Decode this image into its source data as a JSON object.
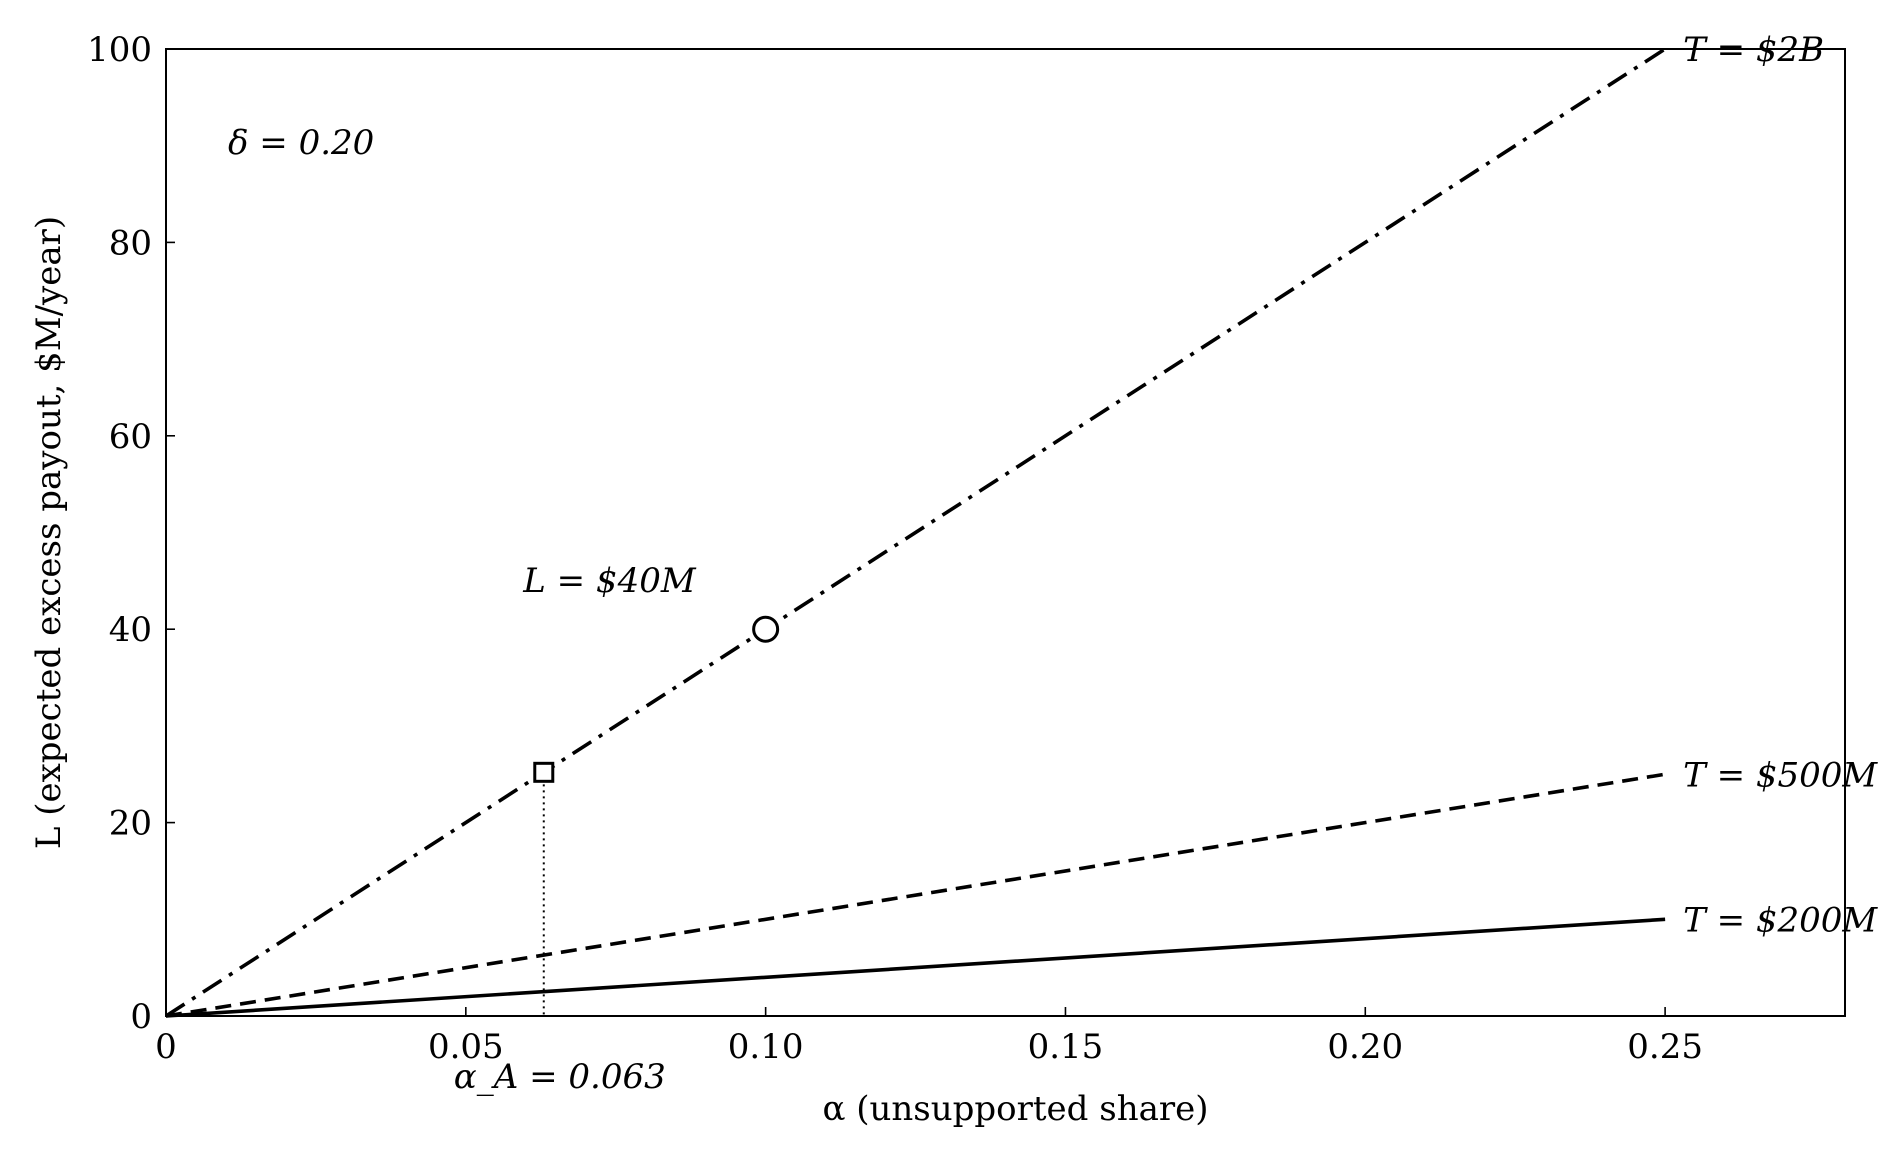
{
  "chart_data": {
    "type": "line",
    "title": "",
    "xlabel": "α (unsupported share)",
    "ylabel": "L (expected excess payout, $M/year)",
    "xlim": [
      0,
      0.28
    ],
    "ylim": [
      0,
      100
    ],
    "grid": false,
    "xticks": [
      0,
      0.05,
      0.1,
      0.15,
      0.2,
      0.25
    ],
    "xtick_labels": [
      "0",
      "0.05",
      "0.10",
      "0.15",
      "0.20",
      "0.25"
    ],
    "yticks": [
      0,
      20,
      40,
      60,
      80,
      100
    ],
    "ytick_labels": [
      "0",
      "20",
      "40",
      "60",
      "80",
      "100"
    ],
    "series": [
      {
        "name": "T = $200M",
        "style": "solid",
        "color": "#000000",
        "x": [
          0,
          0.25
        ],
        "y": [
          0,
          10
        ]
      },
      {
        "name": "T = $500M",
        "style": "dashed",
        "color": "#000000",
        "x": [
          0,
          0.25
        ],
        "y": [
          0,
          25
        ]
      },
      {
        "name": "T = $2B",
        "style": "dashdot",
        "color": "#000000",
        "x": [
          0,
          0.25
        ],
        "y": [
          0,
          100
        ]
      }
    ],
    "markers": [
      {
        "shape": "circle",
        "x": 0.1,
        "y": 40,
        "label": "L = $40M"
      },
      {
        "shape": "square",
        "x": 0.063,
        "y": 25.2,
        "label": "α_A = 0.063"
      }
    ],
    "annotations": {
      "delta": "δ = 0.20"
    }
  }
}
